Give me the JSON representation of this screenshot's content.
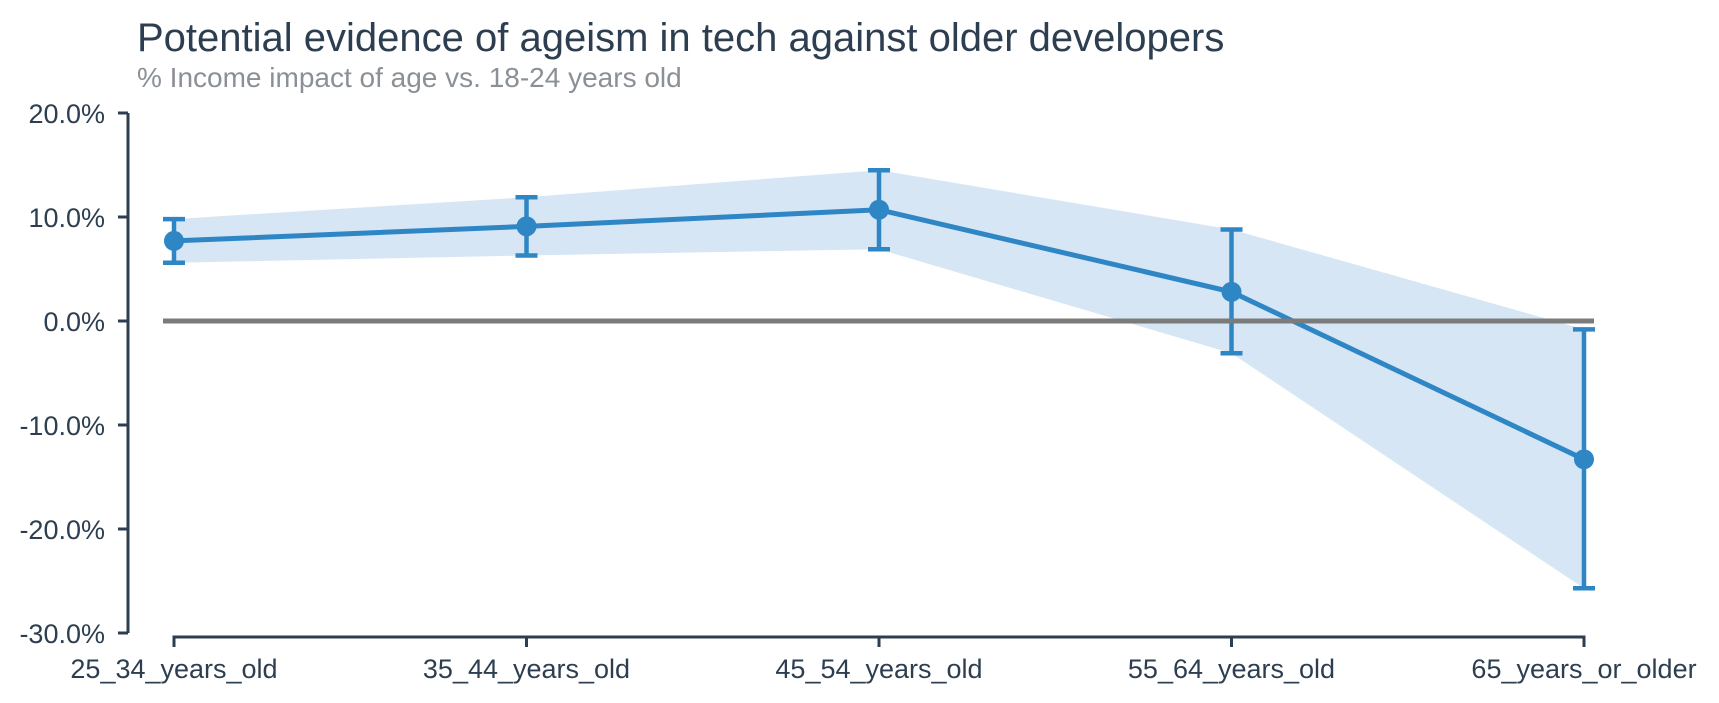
{
  "chart_data": {
    "type": "line",
    "title": "Potential evidence of ageism in tech against older developers",
    "subtitle": "% Income impact of age vs. 18-24 years old",
    "categories": [
      "25_34_years_old",
      "35_44_years_old",
      "45_54_years_old",
      "55_64_years_old",
      "65_years_or_older"
    ],
    "series": [
      {
        "name": "% income impact of age vs. 18-24 years old",
        "values": [
          7.7,
          9.1,
          10.7,
          2.8,
          -13.3
        ],
        "ci_low": [
          5.6,
          6.3,
          6.9,
          -3.1,
          -25.7
        ],
        "ci_high": [
          9.8,
          11.9,
          14.5,
          8.8,
          -0.8
        ]
      }
    ],
    "xlabel": "",
    "ylabel": "",
    "ylim": [
      -30,
      20
    ],
    "ytick_step": 10,
    "ytick_labels": [
      "20.0%",
      "10.0%",
      "0.0%",
      "-10.0%",
      "-20.0%",
      "-30.0%"
    ],
    "grid": false,
    "zero_line": true,
    "legend": "none",
    "colors": {
      "line": "#2e86c5",
      "marker": "#2e86c5",
      "band": "#d6e6f5",
      "zero_line": "#7b7b7b",
      "axis": "#2d3e50",
      "tick_label": "#2d3e50",
      "title": "#2d3e50",
      "subtitle": "#8a9096"
    }
  }
}
